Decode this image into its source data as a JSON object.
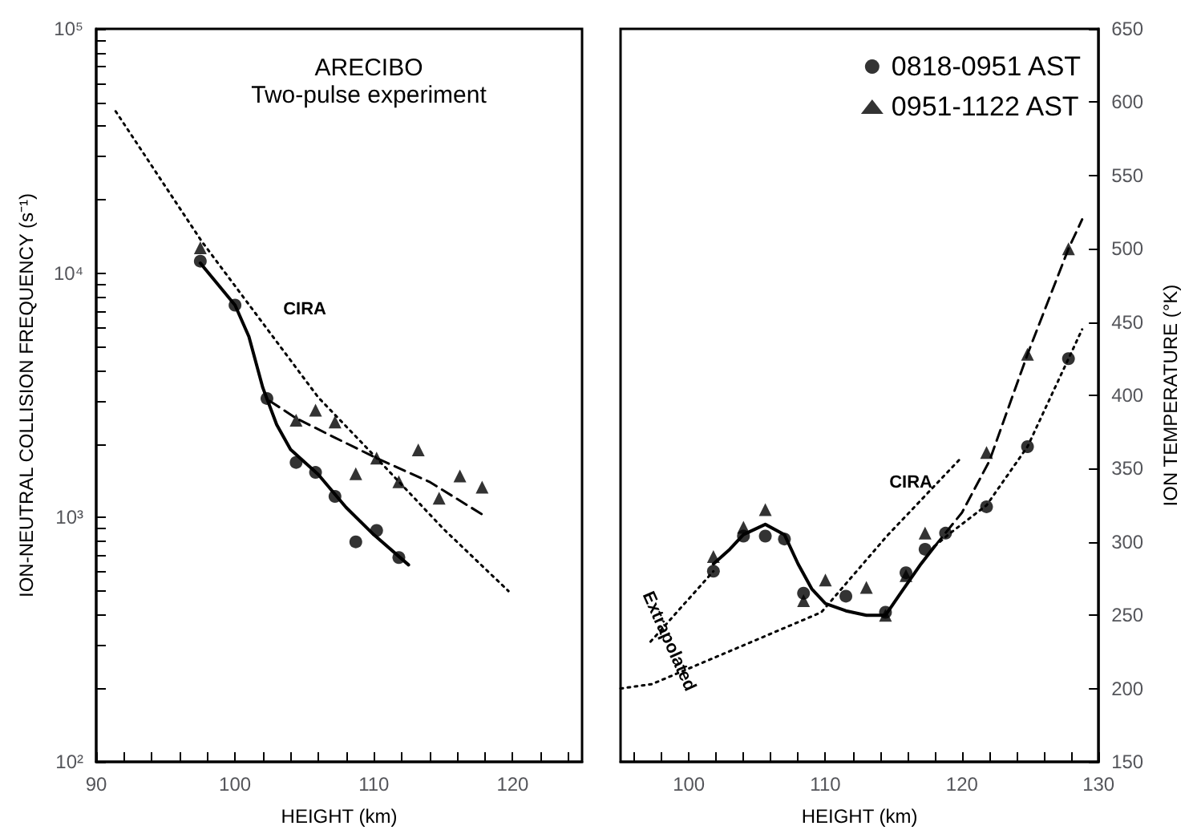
{
  "chart_data": [
    {
      "type": "line",
      "title": "ARECIBO",
      "subtitle": "Two-pulse experiment",
      "xlabel": "HEIGHT (km)",
      "ylabel": "ION-NEUTRAL COLLISION FREQUENCY (s⁻¹)",
      "log": "y",
      "xlim": [
        90,
        125
      ],
      "ylim": [
        100,
        100000
      ],
      "xticks": [
        {
          "value": 90,
          "label": "90"
        },
        {
          "value": 92,
          "label": null
        },
        {
          "value": 94,
          "label": null
        },
        {
          "value": 96,
          "label": null
        },
        {
          "value": 98,
          "label": null
        },
        {
          "value": 100,
          "label": "100"
        },
        {
          "value": 102,
          "label": null
        },
        {
          "value": 104,
          "label": null
        },
        {
          "value": 106,
          "label": null
        },
        {
          "value": 108,
          "label": null
        },
        {
          "value": 110,
          "label": "110"
        },
        {
          "value": 112,
          "label": null
        },
        {
          "value": 114,
          "label": null
        },
        {
          "value": 116,
          "label": null
        },
        {
          "value": 118,
          "label": null
        },
        {
          "value": 120,
          "label": "120"
        },
        {
          "value": 122,
          "label": null
        },
        {
          "value": 124,
          "label": null
        }
      ],
      "yticks": [
        {
          "value": 100,
          "label": "10²"
        },
        {
          "value": 200,
          "label": null
        },
        {
          "value": 300,
          "label": null
        },
        {
          "value": 400,
          "label": null
        },
        {
          "value": 500,
          "label": null
        },
        {
          "value": 600,
          "label": null
        },
        {
          "value": 700,
          "label": null
        },
        {
          "value": 800,
          "label": null
        },
        {
          "value": 900,
          "label": null
        },
        {
          "value": 1000,
          "label": "10³"
        },
        {
          "value": 2000,
          "label": null
        },
        {
          "value": 3000,
          "label": null
        },
        {
          "value": 4000,
          "label": null
        },
        {
          "value": 5000,
          "label": null
        },
        {
          "value": 6000,
          "label": null
        },
        {
          "value": 7000,
          "label": null
        },
        {
          "value": 8000,
          "label": null
        },
        {
          "value": 9000,
          "label": null
        },
        {
          "value": 10000,
          "label": "10⁴"
        },
        {
          "value": 20000,
          "label": null
        },
        {
          "value": 30000,
          "label": null
        },
        {
          "value": 40000,
          "label": null
        },
        {
          "value": 50000,
          "label": null
        },
        {
          "value": 60000,
          "label": null
        },
        {
          "value": 70000,
          "label": null
        },
        {
          "value": 80000,
          "label": null
        },
        {
          "value": 90000,
          "label": null
        },
        {
          "value": 100000,
          "label": "10⁵"
        }
      ],
      "grid": false,
      "legend": false,
      "annotations": [
        "CIRA"
      ],
      "series": [
        {
          "type": "scatter",
          "marker": "circle",
          "color": "#000000",
          "x": [
            97.5,
            100,
            102.3,
            104.4,
            105.8,
            107.2,
            108.7,
            110.2,
            111.8
          ],
          "values": [
            11200,
            7400,
            3070,
            1680,
            1530,
            1220,
            795,
            885,
            686
          ]
        },
        {
          "type": "scatter",
          "marker": "triangle",
          "color": "#000000",
          "x": [
            97.5,
            104.4,
            105.8,
            107.2,
            108.7,
            110.2,
            111.8,
            113.2,
            114.7,
            116.2,
            117.8
          ],
          "values": [
            12700,
            2500,
            2750,
            2460,
            1510,
            1750,
            1400,
            1890,
            1200,
            1480,
            1330
          ]
        },
        {
          "line_style": "solid",
          "marker": "none",
          "color": "#000000",
          "x": [
            97.5,
            100,
            101,
            102,
            103,
            104,
            106,
            108,
            110,
            112.5
          ],
          "values": [
            11000,
            7400,
            5500,
            3400,
            2400,
            1900,
            1500,
            1100,
            850,
            640
          ]
        },
        {
          "line_style": "dashed",
          "marker": "none",
          "color": "#000000",
          "x": [
            102.5,
            104.4,
            107,
            110.2,
            114,
            117.8
          ],
          "values": [
            3000,
            2550,
            2150,
            1750,
            1400,
            1030
          ]
        },
        {
          "line_style": "dotted",
          "marker": "none",
          "color": "#000000",
          "x": [
            91.4,
            97.6,
            106,
            110.2,
            115,
            119.7
          ],
          "values": [
            46000,
            13500,
            3100,
            1750,
            900,
            500
          ]
        }
      ]
    },
    {
      "type": "line",
      "xlabel": "HEIGHT (km)",
      "y2label": "ION TEMPERATURE (°K)",
      "xlim": [
        95,
        130
      ],
      "y2lim": [
        150,
        650
      ],
      "xticks": [
        {
          "value": 96,
          "label": null
        },
        {
          "value": 98,
          "label": null
        },
        {
          "value": 100,
          "label": "100"
        },
        {
          "value": 102,
          "label": null
        },
        {
          "value": 104,
          "label": null
        },
        {
          "value": 106,
          "label": null
        },
        {
          "value": 108,
          "label": null
        },
        {
          "value": 110,
          "label": "110"
        },
        {
          "value": 112,
          "label": null
        },
        {
          "value": 114,
          "label": null
        },
        {
          "value": 116,
          "label": null
        },
        {
          "value": 118,
          "label": null
        },
        {
          "value": 120,
          "label": "120"
        },
        {
          "value": 122,
          "label": null
        },
        {
          "value": 124,
          "label": null
        },
        {
          "value": 126,
          "label": null
        },
        {
          "value": 128,
          "label": null
        },
        {
          "value": 130,
          "label": "130"
        }
      ],
      "y2ticks": [
        150,
        200,
        250,
        300,
        350,
        400,
        450,
        500,
        550,
        600,
        650
      ],
      "grid": false,
      "legend": "top right",
      "annotations": [
        "CIRA",
        "Extrapolated"
      ],
      "series": [
        {
          "name": "0818-0951 AST",
          "type": "scatter",
          "marker": "circle",
          "axis": "y2",
          "color": "#000000",
          "x": [
            101.8,
            104,
            105.6,
            107,
            108.4,
            111.5,
            114.4,
            115.9,
            117.3,
            118.8,
            121.8,
            124.8,
            127.8
          ],
          "values": [
            280,
            304,
            304,
            302,
            265,
            263,
            252,
            279,
            295,
            306,
            324,
            365,
            425
          ]
        },
        {
          "name": "0951-1122 AST",
          "type": "scatter",
          "marker": "triangle",
          "axis": "y2",
          "color": "#000000",
          "x": [
            101.8,
            104,
            105.6,
            108.4,
            110,
            113,
            114.4,
            115.9,
            117.3,
            121.8,
            124.8,
            127.8
          ],
          "values": [
            290,
            310,
            322,
            260,
            274,
            269,
            250,
            277,
            306,
            361,
            428,
            500
          ]
        },
        {
          "line_style": "solid",
          "marker": "none",
          "axis": "y2",
          "color": "#000000",
          "x": [
            101.8,
            103,
            104,
            105.6,
            107,
            108,
            109,
            110,
            111.5,
            113,
            114.4,
            115.5,
            117,
            118
          ],
          "values": [
            285,
            295,
            305,
            312,
            305,
            285,
            268,
            258,
            253,
            250,
            250,
            265,
            285,
            297
          ]
        },
        {
          "line_style": "dashed",
          "marker": "none",
          "axis": "y2",
          "color": "#000000",
          "x": [
            118,
            120,
            122,
            124.8,
            127.8,
            128.8
          ],
          "values": [
            297,
            320,
            355,
            428,
            500,
            520
          ]
        },
        {
          "line_style": "dotted",
          "marker": "none",
          "axis": "y2",
          "color": "#000000",
          "x": [
            118,
            119,
            121.8,
            124.8,
            127.8,
            128.8
          ],
          "values": [
            297,
            305,
            325,
            365,
            425,
            445
          ]
        },
        {
          "line_style": "dotted",
          "marker": "none",
          "axis": "y2",
          "color": "#000000",
          "x": [
            95,
            97.3,
            109.7,
            114.5,
            119.9
          ],
          "values": [
            200,
            203,
            252,
            304,
            357
          ]
        },
        {
          "line_style": "dotted",
          "marker": "none",
          "axis": "y2",
          "color": "#000000",
          "x": [
            97.2,
            101.8
          ],
          "values": [
            232,
            280
          ]
        }
      ]
    }
  ]
}
